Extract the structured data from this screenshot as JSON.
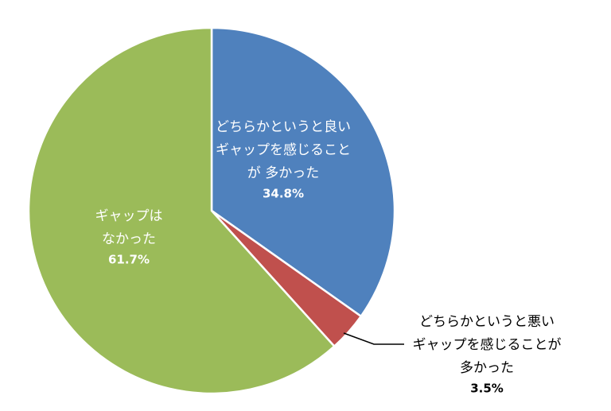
{
  "chart_data": {
    "type": "pie",
    "categories": [
      [
        "どちらかというと良い",
        "ギャップを感じること",
        "が 多かった"
      ],
      [
        "どちらかというと悪い",
        "ギャップを感じることが",
        "多かった"
      ],
      [
        "ギャップは",
        "なかった"
      ]
    ],
    "values": [
      34.8,
      3.5,
      61.7
    ],
    "value_labels": [
      "34.8%",
      "3.5%",
      "61.7%"
    ],
    "colors": [
      "#4f81bd",
      "#c0504d",
      "#9bbb59"
    ]
  }
}
